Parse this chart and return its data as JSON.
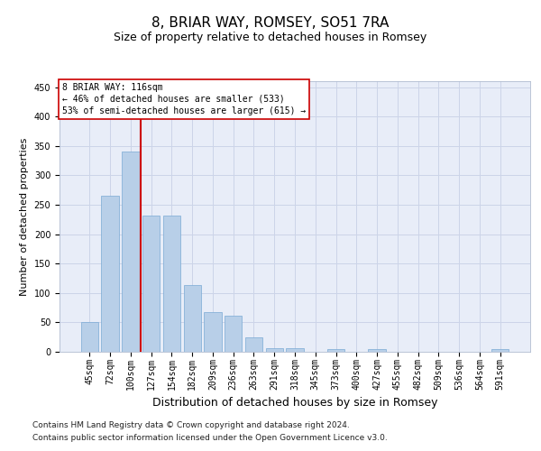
{
  "title1": "8, BRIAR WAY, ROMSEY, SO51 7RA",
  "title2": "Size of property relative to detached houses in Romsey",
  "xlabel": "Distribution of detached houses by size in Romsey",
  "ylabel": "Number of detached properties",
  "categories": [
    "45sqm",
    "72sqm",
    "100sqm",
    "127sqm",
    "154sqm",
    "182sqm",
    "209sqm",
    "236sqm",
    "263sqm",
    "291sqm",
    "318sqm",
    "345sqm",
    "373sqm",
    "400sqm",
    "427sqm",
    "455sqm",
    "482sqm",
    "509sqm",
    "536sqm",
    "564sqm",
    "591sqm"
  ],
  "values": [
    50,
    265,
    340,
    232,
    232,
    113,
    67,
    62,
    24,
    6,
    6,
    0,
    5,
    0,
    5,
    0,
    0,
    0,
    0,
    0,
    5
  ],
  "bar_color": "#b8cfe8",
  "bar_edge_color": "#7aaad4",
  "vline_color": "#cc0000",
  "vline_x": 2.5,
  "annotation_text": "8 BRIAR WAY: 116sqm\n← 46% of detached houses are smaller (533)\n53% of semi-detached houses are larger (615) →",
  "annotation_box_color": "#ffffff",
  "annotation_box_edge": "#cc0000",
  "ylim": [
    0,
    460
  ],
  "yticks": [
    0,
    50,
    100,
    150,
    200,
    250,
    300,
    350,
    400,
    450
  ],
  "grid_color": "#ccd4e8",
  "bg_color": "#e8edf8",
  "footer1": "Contains HM Land Registry data © Crown copyright and database right 2024.",
  "footer2": "Contains public sector information licensed under the Open Government Licence v3.0.",
  "title1_fontsize": 11,
  "title2_fontsize": 9,
  "xlabel_fontsize": 9,
  "ylabel_fontsize": 8,
  "tick_fontsize": 7,
  "footer_fontsize": 6.5
}
